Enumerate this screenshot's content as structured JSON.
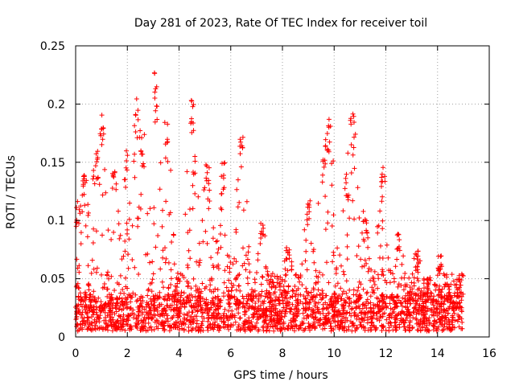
{
  "chart_data": {
    "type": "scatter",
    "title": "Day 281 of 2023, Rate Of TEC Index for receiver toil",
    "xlabel": "GPS time / hours",
    "ylabel": "ROTI / TECUs",
    "xlim": [
      0,
      16
    ],
    "ylim": [
      0,
      0.25
    ],
    "x_ticks": [
      0,
      2,
      4,
      6,
      8,
      10,
      12,
      14,
      16
    ],
    "y_ticks": [
      0,
      0.05,
      0.1,
      0.15,
      0.2,
      0.25
    ],
    "x_tick_labels": [
      "0",
      "2",
      "4",
      "6",
      "8",
      "10",
      "12",
      "14",
      "16"
    ],
    "y_tick_labels": [
      "0",
      "0.05",
      "0.1",
      "0.15",
      "0.2",
      "0.25"
    ],
    "grid": true,
    "marker": "+",
    "color": "#ff0000",
    "series": [
      {
        "name": "ROTI",
        "x_range": [
          0,
          15
        ],
        "baseline_band": [
          0.005,
          0.035
        ],
        "envelope_peaks": [
          {
            "x": 0.1,
            "y": 0.12
          },
          {
            "x": 0.35,
            "y": 0.14
          },
          {
            "x": 0.8,
            "y": 0.16
          },
          {
            "x": 1.0,
            "y": 0.2
          },
          {
            "x": 1.5,
            "y": 0.15
          },
          {
            "x": 1.95,
            "y": 0.16
          },
          {
            "x": 2.35,
            "y": 0.21
          },
          {
            "x": 2.6,
            "y": 0.18
          },
          {
            "x": 3.1,
            "y": 0.23
          },
          {
            "x": 3.5,
            "y": 0.185
          },
          {
            "x": 4.5,
            "y": 0.205
          },
          {
            "x": 5.1,
            "y": 0.15
          },
          {
            "x": 5.7,
            "y": 0.15
          },
          {
            "x": 6.4,
            "y": 0.18
          },
          {
            "x": 7.2,
            "y": 0.1
          },
          {
            "x": 8.2,
            "y": 0.08
          },
          {
            "x": 9.0,
            "y": 0.12
          },
          {
            "x": 9.6,
            "y": 0.17
          },
          {
            "x": 9.8,
            "y": 0.19
          },
          {
            "x": 10.5,
            "y": 0.14
          },
          {
            "x": 10.7,
            "y": 0.2
          },
          {
            "x": 11.2,
            "y": 0.11
          },
          {
            "x": 11.9,
            "y": 0.15
          },
          {
            "x": 12.5,
            "y": 0.09
          },
          {
            "x": 13.2,
            "y": 0.075
          },
          {
            "x": 14.1,
            "y": 0.07
          },
          {
            "x": 14.8,
            "y": 0.05
          }
        ]
      }
    ]
  }
}
